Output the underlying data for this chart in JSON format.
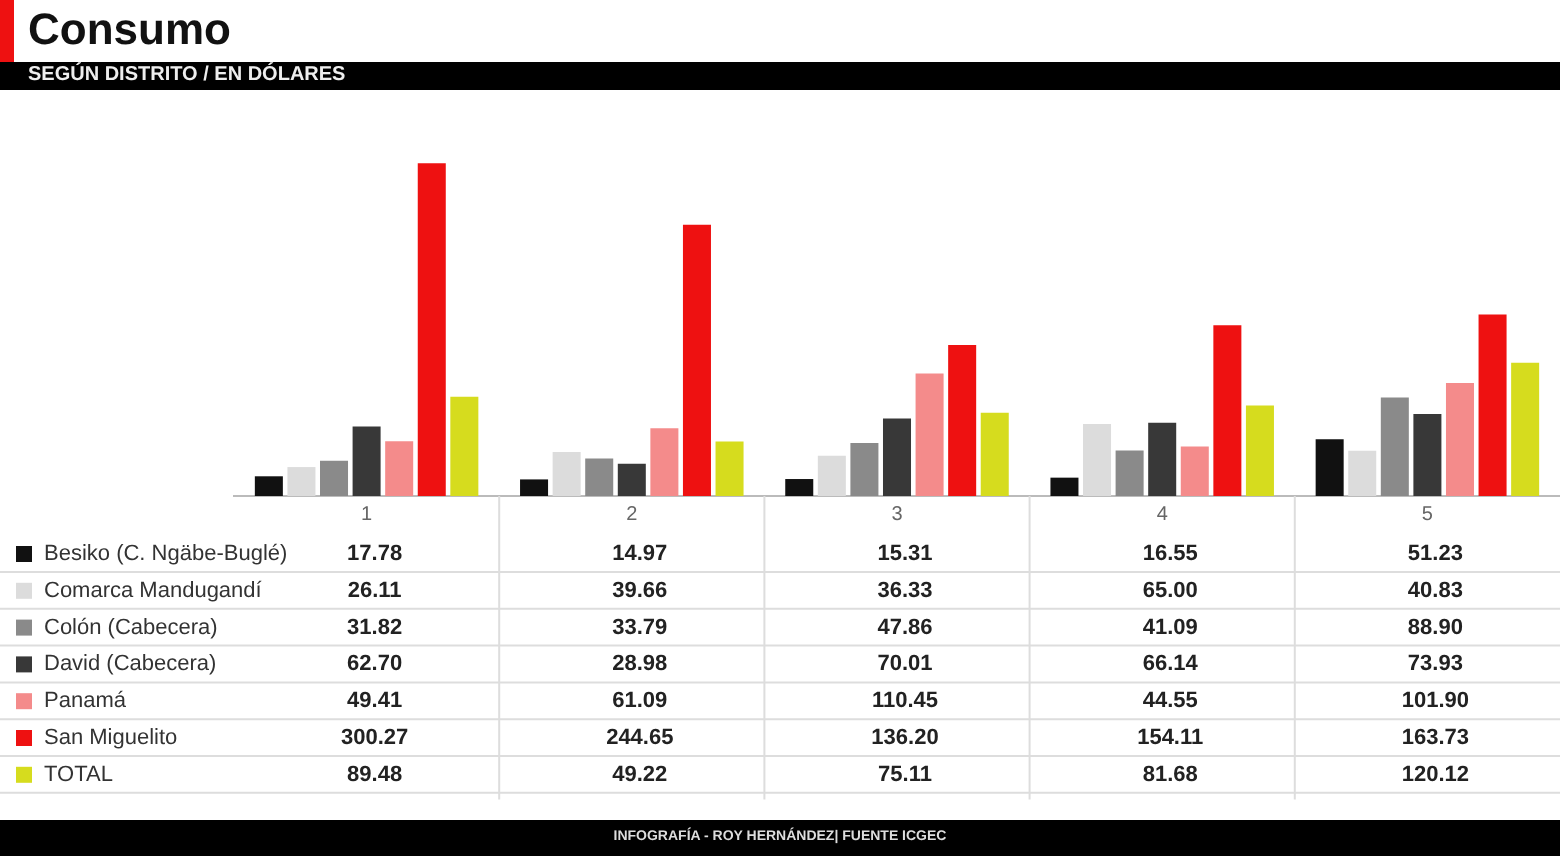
{
  "chart_data": {
    "type": "bar",
    "title": "Consumo",
    "subtitle": "SEGÚN DISTRITO / EN DÓLARES",
    "categories": [
      "1",
      "2",
      "3",
      "4",
      "5"
    ],
    "series": [
      {
        "name": "Besiko (C. Ngäbe-Buglé)",
        "color": "#111111",
        "values": [
          17.78,
          14.97,
          15.31,
          16.55,
          51.23
        ],
        "value_labels": [
          "17.78",
          "14.97",
          "15.31",
          "16.55",
          "51.23"
        ]
      },
      {
        "name": "Comarca Mandugandí",
        "color": "#dcdcdc",
        "values": [
          26.11,
          39.66,
          36.33,
          65.0,
          40.83
        ],
        "value_labels": [
          "26.11",
          "39.66",
          "36.33",
          "65.00",
          "40.83"
        ]
      },
      {
        "name": "Colón (Cabecera)",
        "color": "#8a8a8a",
        "values": [
          31.82,
          33.79,
          47.86,
          41.09,
          88.9
        ],
        "value_labels": [
          "31.82",
          "33.79",
          "47.86",
          "41.09",
          "88.90"
        ]
      },
      {
        "name": "David (Cabecera)",
        "color": "#383838",
        "values": [
          62.7,
          28.98,
          70.01,
          66.14,
          73.93
        ],
        "value_labels": [
          "62.70",
          "28.98",
          "70.01",
          "66.14",
          "73.93"
        ]
      },
      {
        "name": "Panamá",
        "color": "#f48b8b",
        "values": [
          49.41,
          61.09,
          110.45,
          44.55,
          101.9
        ],
        "value_labels": [
          "49.41",
          "61.09",
          "110.45",
          "44.55",
          "101.90"
        ]
      },
      {
        "name": "San Miguelito",
        "color": "#ee1111",
        "values": [
          300.27,
          244.65,
          136.2,
          154.11,
          163.73
        ],
        "value_labels": [
          "300.27",
          "244.65",
          "136.20",
          "154.11",
          "163.73"
        ]
      },
      {
        "name": "TOTAL",
        "color": "#d6dc1e",
        "values": [
          89.48,
          49.22,
          75.11,
          81.68,
          120.12
        ],
        "value_labels": [
          "89.48",
          "49.22",
          "75.11",
          "81.68",
          "120.12"
        ]
      }
    ],
    "legend": "bottom left",
    "grid": false,
    "annotations": [
      "INFOGRAFÍA - ROY HERNÁNDEZ| FUENTE ICGEC"
    ]
  }
}
